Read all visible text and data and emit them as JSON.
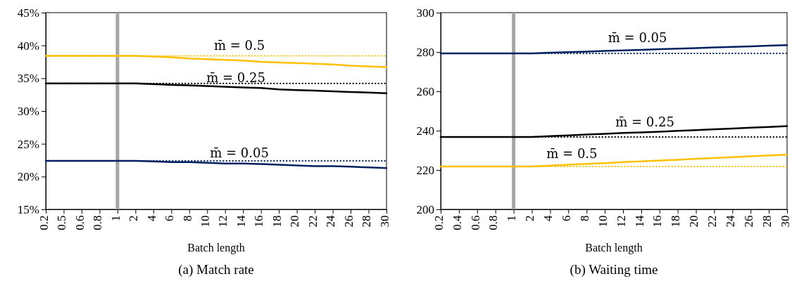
{
  "chart_data": [
    {
      "type": "line",
      "title": "(a) Match rate",
      "xlabel": "Batch length",
      "categories": [
        "0.2",
        "0.5",
        "0.6",
        "0.8",
        "1",
        "2",
        "4",
        "6",
        "8",
        "10",
        "12",
        "14",
        "16",
        "18",
        "20",
        "22",
        "24",
        "26",
        "28",
        "30"
      ],
      "ylim": [
        15,
        45
      ],
      "yticks": [
        {
          "value": 15,
          "label": "15%"
        },
        {
          "value": 20,
          "label": "20%"
        },
        {
          "value": 25,
          "label": "25%"
        },
        {
          "value": 30,
          "label": "30%"
        },
        {
          "value": 35,
          "label": "35%"
        },
        {
          "value": 40,
          "label": "40%"
        },
        {
          "value": 45,
          "label": "45%"
        }
      ],
      "grid": false,
      "marker": "none",
      "ref_lines": [
        {
          "axis": "x",
          "value": "1",
          "color": "#a6a6a6"
        }
      ],
      "series": [
        {
          "color": "#ffc000",
          "line_style": "dotted",
          "values": [
            38.4,
            38.4,
            38.4,
            38.4,
            38.4,
            38.4,
            38.4,
            38.4,
            38.4,
            38.4,
            38.4,
            38.4,
            38.4,
            38.4,
            38.4,
            38.4,
            38.4,
            38.4,
            38.4,
            38.4
          ]
        },
        {
          "color": "#000000",
          "line_style": "dotted",
          "values": [
            34.2,
            34.2,
            34.2,
            34.2,
            34.2,
            34.2,
            34.2,
            34.2,
            34.2,
            34.2,
            34.2,
            34.2,
            34.2,
            34.2,
            34.2,
            34.2,
            34.2,
            34.2,
            34.2,
            34.2
          ]
        },
        {
          "color": "#002060",
          "line_style": "dotted",
          "values": [
            22.4,
            22.4,
            22.4,
            22.4,
            22.4,
            22.4,
            22.4,
            22.4,
            22.4,
            22.4,
            22.4,
            22.4,
            22.4,
            22.4,
            22.4,
            22.4,
            22.4,
            22.4,
            22.4,
            22.4
          ]
        },
        {
          "name": "m̄ = 0.5",
          "color": "#ffc000",
          "line_style": "solid",
          "values": [
            38.4,
            38.4,
            38.4,
            38.4,
            38.4,
            38.4,
            38.3,
            38.2,
            38.0,
            37.9,
            37.8,
            37.7,
            37.5,
            37.4,
            37.3,
            37.2,
            37.1,
            36.9,
            36.8,
            36.7
          ]
        },
        {
          "name": "m̄ = 0.25",
          "color": "#000000",
          "line_style": "solid",
          "values": [
            34.2,
            34.2,
            34.2,
            34.2,
            34.2,
            34.2,
            34.1,
            34.0,
            33.9,
            33.8,
            33.7,
            33.6,
            33.5,
            33.3,
            33.2,
            33.1,
            33.0,
            32.9,
            32.8,
            32.7
          ]
        },
        {
          "name": "m̄ = 0.05",
          "color": "#002060",
          "line_style": "solid",
          "values": [
            22.4,
            22.4,
            22.4,
            22.4,
            22.4,
            22.4,
            22.3,
            22.2,
            22.2,
            22.1,
            22.0,
            22.0,
            21.9,
            21.8,
            21.7,
            21.6,
            21.6,
            21.5,
            21.4,
            21.3
          ]
        }
      ]
    },
    {
      "type": "line",
      "title": "(b) Waiting time",
      "xlabel": "Batch length",
      "categories": [
        "0.2",
        "0.4",
        "0.6",
        "0.8",
        "1",
        "2",
        "4",
        "6",
        "8",
        "10",
        "12",
        "14",
        "16",
        "18",
        "20",
        "22",
        "24",
        "26",
        "28",
        "30"
      ],
      "ylim": [
        200,
        300
      ],
      "yticks": [
        200,
        220,
        240,
        260,
        280,
        300
      ],
      "grid": false,
      "marker": "none",
      "ref_lines": [
        {
          "axis": "x",
          "value": "1",
          "color": "#a6a6a6"
        }
      ],
      "series": [
        {
          "color": "#002060",
          "line_style": "dotted",
          "values": [
            279.3,
            279.3,
            279.3,
            279.3,
            279.3,
            279.3,
            279.3,
            279.3,
            279.3,
            279.3,
            279.3,
            279.3,
            279.3,
            279.3,
            279.3,
            279.3,
            279.3,
            279.3,
            279.3,
            279.3
          ]
        },
        {
          "color": "#000000",
          "line_style": "dotted",
          "values": [
            236.8,
            236.8,
            236.8,
            236.8,
            236.8,
            236.8,
            236.8,
            236.8,
            236.8,
            236.8,
            236.8,
            236.8,
            236.8,
            236.8,
            236.8,
            236.8,
            236.8,
            236.8,
            236.8,
            236.8
          ]
        },
        {
          "color": "#ffc000",
          "line_style": "dotted",
          "values": [
            221.8,
            221.8,
            221.8,
            221.8,
            221.8,
            221.8,
            221.8,
            221.8,
            221.8,
            221.8,
            221.8,
            221.8,
            221.8,
            221.8,
            221.8,
            221.8,
            221.8,
            221.8,
            221.8,
            221.8
          ]
        },
        {
          "name": "m̄ = 0.05",
          "color": "#002060",
          "line_style": "solid",
          "values": [
            279.3,
            279.3,
            279.3,
            279.3,
            279.3,
            279.3,
            279.6,
            279.9,
            280.2,
            280.5,
            280.8,
            281.1,
            281.4,
            281.7,
            282.0,
            282.3,
            282.6,
            282.9,
            283.2,
            283.5
          ]
        },
        {
          "name": "m̄ = 0.25",
          "color": "#000000",
          "line_style": "solid",
          "values": [
            236.8,
            236.8,
            236.8,
            236.8,
            236.8,
            236.8,
            237.2,
            237.6,
            238.0,
            238.4,
            238.8,
            239.1,
            239.5,
            239.9,
            240.3,
            240.7,
            241.1,
            241.5,
            241.9,
            242.3
          ]
        },
        {
          "name": "m̄ = 0.5",
          "color": "#ffc000",
          "line_style": "solid",
          "values": [
            221.8,
            221.8,
            221.8,
            221.8,
            221.8,
            221.8,
            222.2,
            222.7,
            223.1,
            223.5,
            224.0,
            224.4,
            224.8,
            225.2,
            225.7,
            226.1,
            226.5,
            227.0,
            227.4,
            227.8
          ]
        }
      ]
    }
  ]
}
